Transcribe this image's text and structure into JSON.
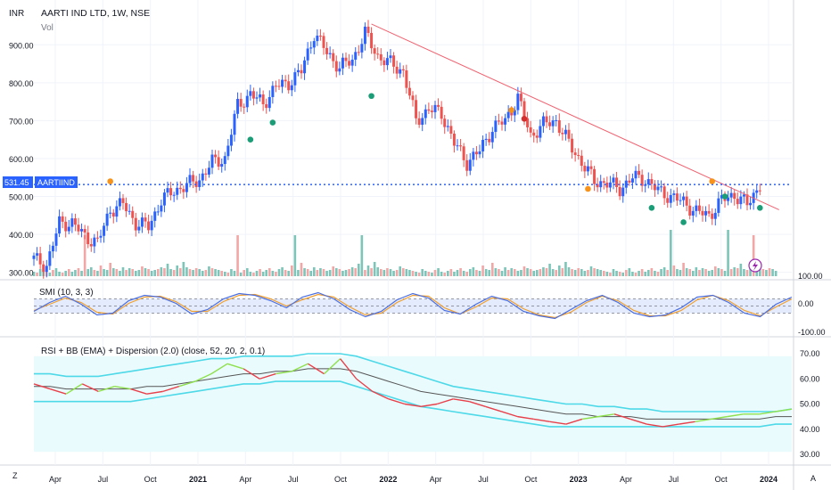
{
  "header": {
    "currency": "INR",
    "title": "AARTI IND LTD, 1W, NSE",
    "volume_label": "Vol"
  },
  "price_badge": {
    "value": "531.45",
    "symbol": "AARTIIND"
  },
  "indicators": {
    "smi_label": "SMI (10, 3, 3)",
    "rsi_label": "RSI + BB (EMA) + Dispersion (2.0) (close, 52, 20, 2, 0.1)"
  },
  "footer": {
    "left_button": "Z",
    "right_button": "A"
  },
  "colors": {
    "up": "#2962ff",
    "down": "#ef5350",
    "trend": "#f06270",
    "price_line": "#2962ff",
    "vol_up": "#7cc5b8",
    "vol_down": "#f3a6a6",
    "bb": "#4dd9e8",
    "rsi_mid": "#555555",
    "rsi_up": "#8ee04c",
    "rsi_down": "#e8404a",
    "smi_k": "#4a6ee0",
    "smi_d": "#f0a030",
    "marker_orange": "#f7931a",
    "marker_green": "#1b9e77",
    "marker_red": "#d32f2f"
  },
  "chart_data": [
    {
      "type": "candlestick",
      "title": "AARTI IND LTD, 1W, NSE",
      "timeframe": "1W",
      "x_tick_labels": [
        "Apr",
        "Jul",
        "Oct",
        "2021",
        "Apr",
        "Jul",
        "Oct",
        "2022",
        "Apr",
        "Jul",
        "Oct",
        "2023",
        "Apr",
        "Jul",
        "Oct",
        "2024"
      ],
      "y_tick_labels": [
        "300.00",
        "400.00",
        "500.00",
        "600.00",
        "700.00",
        "800.00",
        "900.00"
      ],
      "ylim": [
        285,
        990
      ],
      "current_price": 531.45,
      "price_path": [
        [
          0,
          335
        ],
        [
          4,
          318
        ],
        [
          8,
          430
        ],
        [
          12,
          430
        ],
        [
          16,
          395
        ],
        [
          20,
          378
        ],
        [
          24,
          465
        ],
        [
          28,
          480
        ],
        [
          32,
          430
        ],
        [
          36,
          420
        ],
        [
          40,
          490
        ],
        [
          44,
          515
        ],
        [
          48,
          530
        ],
        [
          52,
          545
        ],
        [
          56,
          590
        ],
        [
          60,
          600
        ],
        [
          64,
          740
        ],
        [
          68,
          770
        ],
        [
          72,
          745
        ],
        [
          76,
          790
        ],
        [
          80,
          800
        ],
        [
          84,
          830
        ],
        [
          88,
          930
        ],
        [
          92,
          880
        ],
        [
          96,
          840
        ],
        [
          100,
          860
        ],
        [
          104,
          930
        ],
        [
          108,
          870
        ],
        [
          112,
          850
        ],
        [
          116,
          830
        ],
        [
          120,
          700
        ],
        [
          124,
          730
        ],
        [
          128,
          720
        ],
        [
          132,
          640
        ],
        [
          136,
          590
        ],
        [
          140,
          620
        ],
        [
          144,
          680
        ],
        [
          148,
          700
        ],
        [
          152,
          760
        ],
        [
          156,
          660
        ],
        [
          160,
          690
        ],
        [
          164,
          700
        ],
        [
          168,
          640
        ],
        [
          172,
          590
        ],
        [
          176,
          540
        ],
        [
          180,
          535
        ],
        [
          184,
          520
        ],
        [
          188,
          550
        ],
        [
          192,
          545
        ],
        [
          196,
          515
        ],
        [
          200,
          500
        ],
        [
          204,
          485
        ],
        [
          208,
          460
        ],
        [
          212,
          450
        ],
        [
          216,
          490
        ],
        [
          220,
          505
        ],
        [
          224,
          478
        ],
        [
          228,
          531.45
        ]
      ],
      "trendline": {
        "from": {
          "week": 106,
          "value": 955
        },
        "to": {
          "week": 234,
          "value": 465
        }
      },
      "markers": [
        {
          "week": 24,
          "value": 540,
          "type": "orange"
        },
        {
          "week": 68,
          "value": 650,
          "type": "green"
        },
        {
          "week": 75,
          "value": 695,
          "type": "green"
        },
        {
          "week": 106,
          "value": 765,
          "type": "green"
        },
        {
          "week": 150,
          "value": 728,
          "type": "orange"
        },
        {
          "week": 154,
          "value": 705,
          "type": "red"
        },
        {
          "week": 174,
          "value": 520,
          "type": "orange"
        },
        {
          "week": 194,
          "value": 470,
          "type": "green"
        },
        {
          "week": 204,
          "value": 432,
          "type": "green"
        },
        {
          "week": 213,
          "value": 540,
          "type": "orange"
        },
        {
          "week": 217,
          "value": 500,
          "type": "green"
        },
        {
          "week": 228,
          "value": 470,
          "type": "green"
        }
      ]
    },
    {
      "type": "bar",
      "name": "Vol",
      "volume_profile": [
        5,
        4,
        8,
        6,
        5,
        4,
        7,
        9,
        5,
        4,
        6,
        8,
        5,
        7,
        9,
        6,
        5,
        8,
        10,
        7,
        6,
        12,
        8,
        7,
        15,
        9,
        8,
        6,
        10,
        7,
        9,
        8,
        6,
        7,
        11,
        9,
        8,
        6,
        7,
        8,
        10,
        9,
        14,
        8,
        7,
        12,
        9,
        16,
        10,
        8,
        7,
        9,
        8,
        6,
        7,
        11,
        9,
        8,
        7,
        6
      ],
      "spike_weeks": [
        16,
        64,
        82,
        103,
        200,
        218,
        226
      ]
    },
    {
      "type": "line",
      "name": "SMI (10, 3, 3)",
      "y_tick_labels": [
        "100.00",
        "0.00",
        "-100.00"
      ],
      "ylim": [
        -100,
        100
      ],
      "k": [
        -30,
        20,
        55,
        10,
        -50,
        -40,
        30,
        60,
        50,
        15,
        -45,
        -20,
        40,
        70,
        60,
        30,
        -10,
        50,
        75,
        40,
        -20,
        -60,
        -30,
        35,
        70,
        45,
        -25,
        -45,
        10,
        55,
        30,
        -30,
        -55,
        -70,
        -20,
        30,
        60,
        20,
        -40,
        -60,
        -50,
        -10,
        50,
        60,
        20,
        -40,
        -60,
        10,
        50
      ],
      "d": [
        -25,
        10,
        45,
        20,
        -35,
        -45,
        15,
        50,
        55,
        25,
        -30,
        -30,
        25,
        60,
        65,
        40,
        0,
        35,
        65,
        50,
        -5,
        -50,
        -40,
        20,
        60,
        55,
        -10,
        -45,
        -5,
        45,
        40,
        -15,
        -50,
        -65,
        -35,
        20,
        55,
        30,
        -25,
        -55,
        -55,
        -25,
        35,
        60,
        30,
        -25,
        -55,
        -5,
        40
      ]
    },
    {
      "type": "line",
      "name": "RSI + BB (EMA) + Dispersion (2.0)",
      "y_tick_labels": [
        "70.00",
        "60.00",
        "50.00",
        "40.00",
        "30.00"
      ],
      "ylim": [
        28,
        72
      ],
      "rsi": [
        58,
        56,
        54,
        58,
        55,
        57,
        56,
        54,
        55,
        57,
        59,
        62,
        66,
        64,
        60,
        62,
        63,
        66,
        62,
        68,
        60,
        55,
        52,
        50,
        49,
        50,
        52,
        51,
        49,
        47,
        45,
        44,
        43,
        42,
        44,
        45,
        46,
        44,
        42,
        41,
        42,
        43,
        44,
        45,
        46,
        46,
        47,
        48
      ],
      "bb_mid": [
        57,
        57,
        56,
        56,
        56,
        56,
        56,
        57,
        57,
        58,
        59,
        60,
        61,
        62,
        62,
        63,
        63,
        64,
        64,
        64,
        63,
        61,
        59,
        57,
        55,
        54,
        53,
        52,
        51,
        50,
        49,
        48,
        47,
        46,
        46,
        45,
        45,
        45,
        44,
        44,
        44,
        44,
        44,
        44,
        44,
        44,
        45,
        45
      ],
      "bb_upper": [
        62,
        62,
        61,
        61,
        61,
        62,
        63,
        64,
        65,
        66,
        67,
        68,
        68,
        69,
        69,
        69,
        69,
        70,
        70,
        70,
        69,
        67,
        65,
        63,
        61,
        59,
        57,
        56,
        55,
        54,
        53,
        52,
        51,
        50,
        50,
        49,
        49,
        48,
        48,
        47,
        47,
        47,
        47,
        47,
        47,
        47,
        47,
        48
      ],
      "bb_lower": [
        51,
        51,
        51,
        51,
        51,
        51,
        51,
        52,
        53,
        54,
        55,
        56,
        57,
        58,
        58,
        59,
        59,
        59,
        59,
        59,
        57,
        55,
        53,
        51,
        49,
        48,
        47,
        46,
        45,
        44,
        43,
        42,
        41,
        41,
        41,
        41,
        41,
        41,
        41,
        41,
        41,
        41,
        41,
        41,
        41,
        41,
        42,
        42
      ]
    }
  ]
}
